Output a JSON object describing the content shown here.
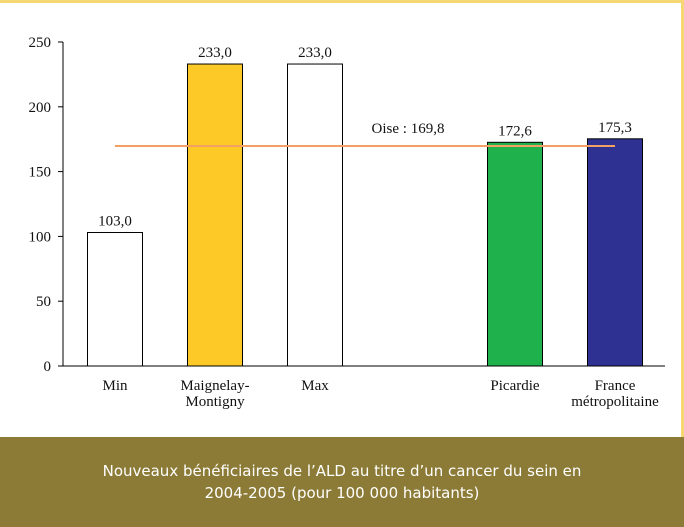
{
  "chart_data": {
    "type": "bar",
    "title": "Nouveaux bénéficiaires de l’ALD au titre d’un cancer du sein en 2004-2005 (pour 100 000 habitants)",
    "categories": [
      "Min",
      "Maignelay-Montigny",
      "Max",
      null,
      "Picardie",
      "France métropolitaine"
    ],
    "values": [
      103.0,
      233.0,
      233.0,
      null,
      172.6,
      175.3
    ],
    "value_labels": [
      "103,0",
      "233,0",
      "233,0",
      null,
      "172,6",
      "175,3"
    ],
    "colors": [
      "#ffffff",
      "#fcc926",
      "#ffffff",
      null,
      "#1fb14b",
      "#2e3192"
    ],
    "ylim": [
      0,
      250
    ],
    "yticks": [
      0,
      50,
      100,
      150,
      200,
      250
    ],
    "reference": {
      "label": "Oise : 169,8",
      "value": 169.8,
      "color": "#f2a064"
    }
  }
}
